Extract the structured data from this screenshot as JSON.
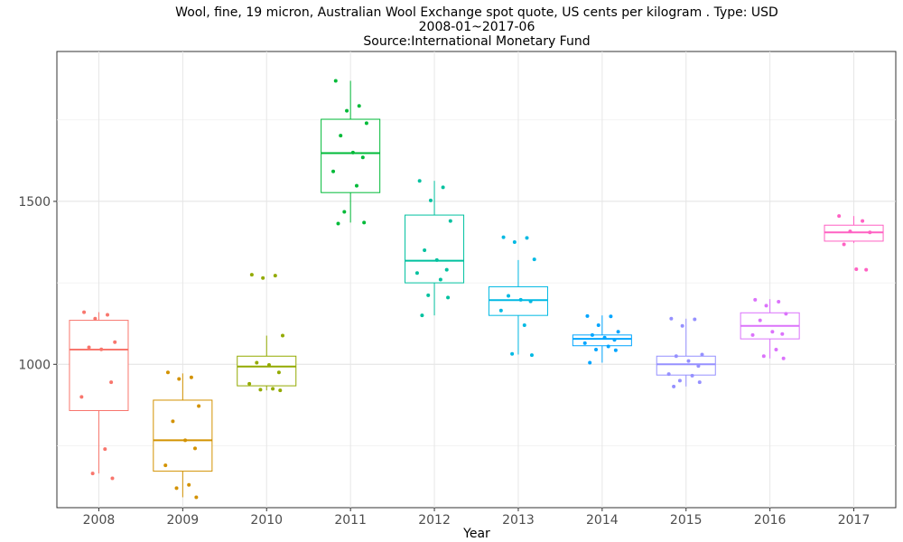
{
  "chart_data": {
    "type": "boxplot",
    "title_lines": [
      "Wool, fine, 19 micron, Australian Wool Exchange spot quote, US cents per kilogram . Type: USD",
      "2008-01~2017-06",
      "Source:International Monetary Fund"
    ],
    "xlabel": "Year",
    "ylabel": "",
    "ylim": [
      560,
      1960
    ],
    "y_ticks": [
      1000,
      1500
    ],
    "grid": true,
    "legend": "none",
    "categories": [
      "2008",
      "2009",
      "2010",
      "2011",
      "2012",
      "2013",
      "2014",
      "2015",
      "2016",
      "2017"
    ],
    "colors": [
      "#F8766D",
      "#D39200",
      "#93AA00",
      "#00BA38",
      "#00C19F",
      "#00B9E3",
      "#00A5FF",
      "#9590FF",
      "#DB72FB",
      "#FF61C3"
    ],
    "boxes": [
      {
        "year": "2008",
        "min": 665,
        "q1": 858,
        "median": 1045,
        "q3": 1135,
        "max": 1160,
        "points": [
          1160,
          1152,
          1140,
          1068,
          1052,
          1046,
          945,
          900,
          740,
          665,
          650
        ]
      },
      {
        "year": "2009",
        "min": 592,
        "q1": 672,
        "median": 767,
        "q3": 890,
        "max": 972,
        "points": [
          975,
          960,
          955,
          872,
          825,
          767,
          742,
          690,
          630,
          620,
          592
        ]
      },
      {
        "year": "2010",
        "min": 920,
        "q1": 934,
        "median": 993,
        "q3": 1025,
        "max": 1088,
        "points": [
          1275,
          1272,
          1265,
          1088,
          1005,
          998,
          975,
          940,
          925,
          922,
          920
        ]
      },
      {
        "year": "2011",
        "min": 1435,
        "q1": 1527,
        "median": 1648,
        "q3": 1752,
        "max": 1870,
        "points": [
          1870,
          1793,
          1778,
          1740,
          1702,
          1650,
          1635,
          1592,
          1548,
          1468,
          1435,
          1432
        ]
      },
      {
        "year": "2012",
        "min": 1150,
        "q1": 1250,
        "median": 1318,
        "q3": 1458,
        "max": 1563,
        "points": [
          1563,
          1543,
          1503,
          1440,
          1350,
          1320,
          1290,
          1280,
          1260,
          1212,
          1205,
          1150
        ]
      },
      {
        "year": "2013",
        "min": 1030,
        "q1": 1150,
        "median": 1197,
        "q3": 1238,
        "max": 1320,
        "points": [
          1390,
          1388,
          1375,
          1322,
          1210,
          1198,
          1193,
          1165,
          1120,
          1032,
          1028
        ]
      },
      {
        "year": "2014",
        "min": 1005,
        "q1": 1057,
        "median": 1078,
        "q3": 1090,
        "max": 1150,
        "points": [
          1148,
          1147,
          1120,
          1100,
          1090,
          1082,
          1075,
          1065,
          1055,
          1045,
          1043,
          1005
        ]
      },
      {
        "year": "2015",
        "min": 932,
        "q1": 967,
        "median": 1000,
        "q3": 1025,
        "max": 1140,
        "points": [
          1140,
          1138,
          1118,
          1030,
          1025,
          1010,
          995,
          970,
          965,
          950,
          945,
          932
        ]
      },
      {
        "year": "2016",
        "min": 1018,
        "q1": 1078,
        "median": 1118,
        "q3": 1158,
        "max": 1200,
        "points": [
          1198,
          1192,
          1180,
          1155,
          1135,
          1100,
          1093,
          1090,
          1045,
          1025,
          1018
        ]
      },
      {
        "year": "2017",
        "min": 1372,
        "q1": 1378,
        "median": 1405,
        "q3": 1427,
        "max": 1455,
        "points": [
          1455,
          1440,
          1408,
          1405,
          1368,
          1292,
          1290
        ]
      }
    ]
  }
}
